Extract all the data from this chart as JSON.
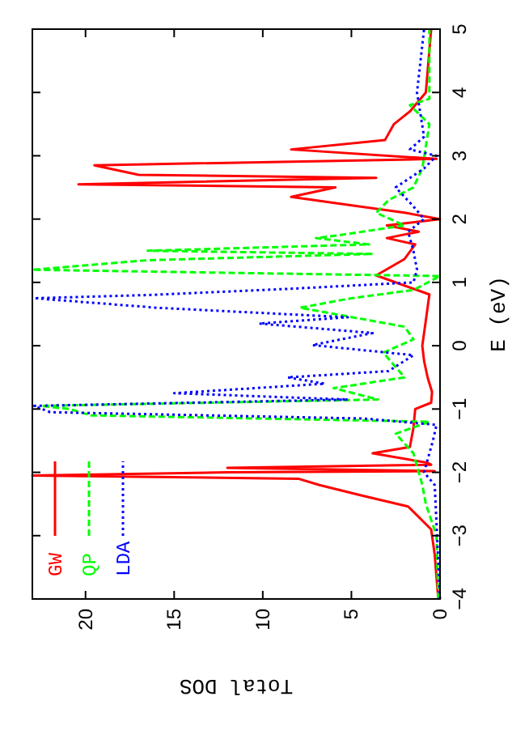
{
  "chart_data": {
    "type": "line",
    "xlabel": "Total DOS",
    "ylabel": "E (eV)",
    "xlim": [
      23,
      0
    ],
    "ylim": [
      -4,
      5
    ],
    "xticks": [
      20,
      15,
      10,
      5,
      0
    ],
    "yticks": [
      -4,
      -3,
      -2,
      -1,
      0,
      1,
      2,
      3,
      4,
      5
    ],
    "grid": false,
    "legend": "bottom left",
    "marker": "none",
    "series": [
      {
        "name": "GW",
        "color": "#ff0000",
        "line_style": "solid",
        "values": [
          -4,
          -3.3,
          -2.9,
          -2.54,
          -2.36,
          -2.2,
          -2.1,
          -2.05,
          -2.0,
          -1.98,
          -1.93,
          -1.88,
          -1.85,
          -1.7,
          -1.6,
          -1.3,
          -1.0,
          -0.9,
          -0.73,
          -0.5,
          -0.24,
          0,
          0.4,
          0.81,
          1.11,
          1.37,
          1.6,
          1.7,
          1.8,
          1.9,
          2.0,
          2.1,
          2.35,
          2.5,
          2.55,
          2.65,
          2.7,
          2.85,
          2.95,
          3.1,
          3.25,
          3.5,
          3.7,
          4.0,
          5
        ],
        "x": [
          0.1,
          0.3,
          0.5,
          1.8,
          4.5,
          6.8,
          8,
          23,
          12,
          0.3,
          12,
          0.5,
          0.7,
          3.8,
          1.7,
          1.5,
          1.4,
          0.5,
          0.45,
          0.7,
          0.9,
          1,
          0.8,
          0.6,
          3.6,
          2,
          1.4,
          3,
          1.2,
          3,
          0,
          2,
          8.4,
          5.9,
          20.4,
          3.6,
          17,
          19.5,
          0.2,
          8.4,
          3.1,
          2.6,
          1.7,
          0.8,
          0.5
        ]
      },
      {
        "name": "QP",
        "color": "#00ff00",
        "line_style": "dashed",
        "values": [
          -4,
          -3,
          -2.5,
          -2.2,
          -1.7,
          -1.39,
          -1.2,
          -1.1,
          -1.0,
          -0.95,
          -0.85,
          -0.67,
          -0.5,
          -0.11,
          0.1,
          0.3,
          0.6,
          0.75,
          0.88,
          1.1,
          1.2,
          1.35,
          1.45,
          1.5,
          1.6,
          1.7,
          1.75,
          1.9,
          2.1,
          2.3,
          2.5,
          2.8,
          3.5,
          3.8,
          3.9,
          5
        ],
        "x": [
          0.1,
          0.2,
          0.8,
          1,
          1.5,
          2.5,
          0.6,
          19.7,
          20.9,
          22.5,
          3.5,
          6,
          2,
          3.2,
          1.5,
          2,
          7.9,
          5,
          1.5,
          0,
          23,
          16.5,
          3.8,
          16.5,
          4,
          7,
          5.6,
          2,
          3.6,
          2.9,
          1.5,
          1,
          0.6,
          1.7,
          0.6,
          0.6
        ]
      },
      {
        "name": "LDA",
        "color": "#0000ff",
        "line_style": "dotted",
        "values": [
          -4,
          -2.2,
          -2.0,
          -1.5,
          -1.25,
          -1.15,
          -1.05,
          -0.95,
          -0.85,
          -0.75,
          -0.6,
          -0.5,
          -0.4,
          -0.15,
          0.01,
          0.2,
          0.35,
          0.45,
          0.6,
          0.75,
          0.8,
          0.9,
          1.0,
          1.2,
          1.5,
          1.8,
          2.0,
          2.2,
          2.5,
          2.8,
          3.0,
          3.1,
          3.3,
          4,
          5
        ],
        "x": [
          0,
          0.3,
          0.9,
          0.4,
          0.2,
          4.3,
          22,
          22.9,
          5.2,
          15,
          6.5,
          8.6,
          2.9,
          1.5,
          7.2,
          3.8,
          10.2,
          5.2,
          16,
          22.9,
          16.5,
          8.4,
          1.5,
          1.3,
          1.5,
          1.8,
          0.9,
          1.5,
          2.5,
          0.9,
          0.2,
          1.7,
          0.9,
          1.3,
          0.9
        ]
      }
    ]
  }
}
